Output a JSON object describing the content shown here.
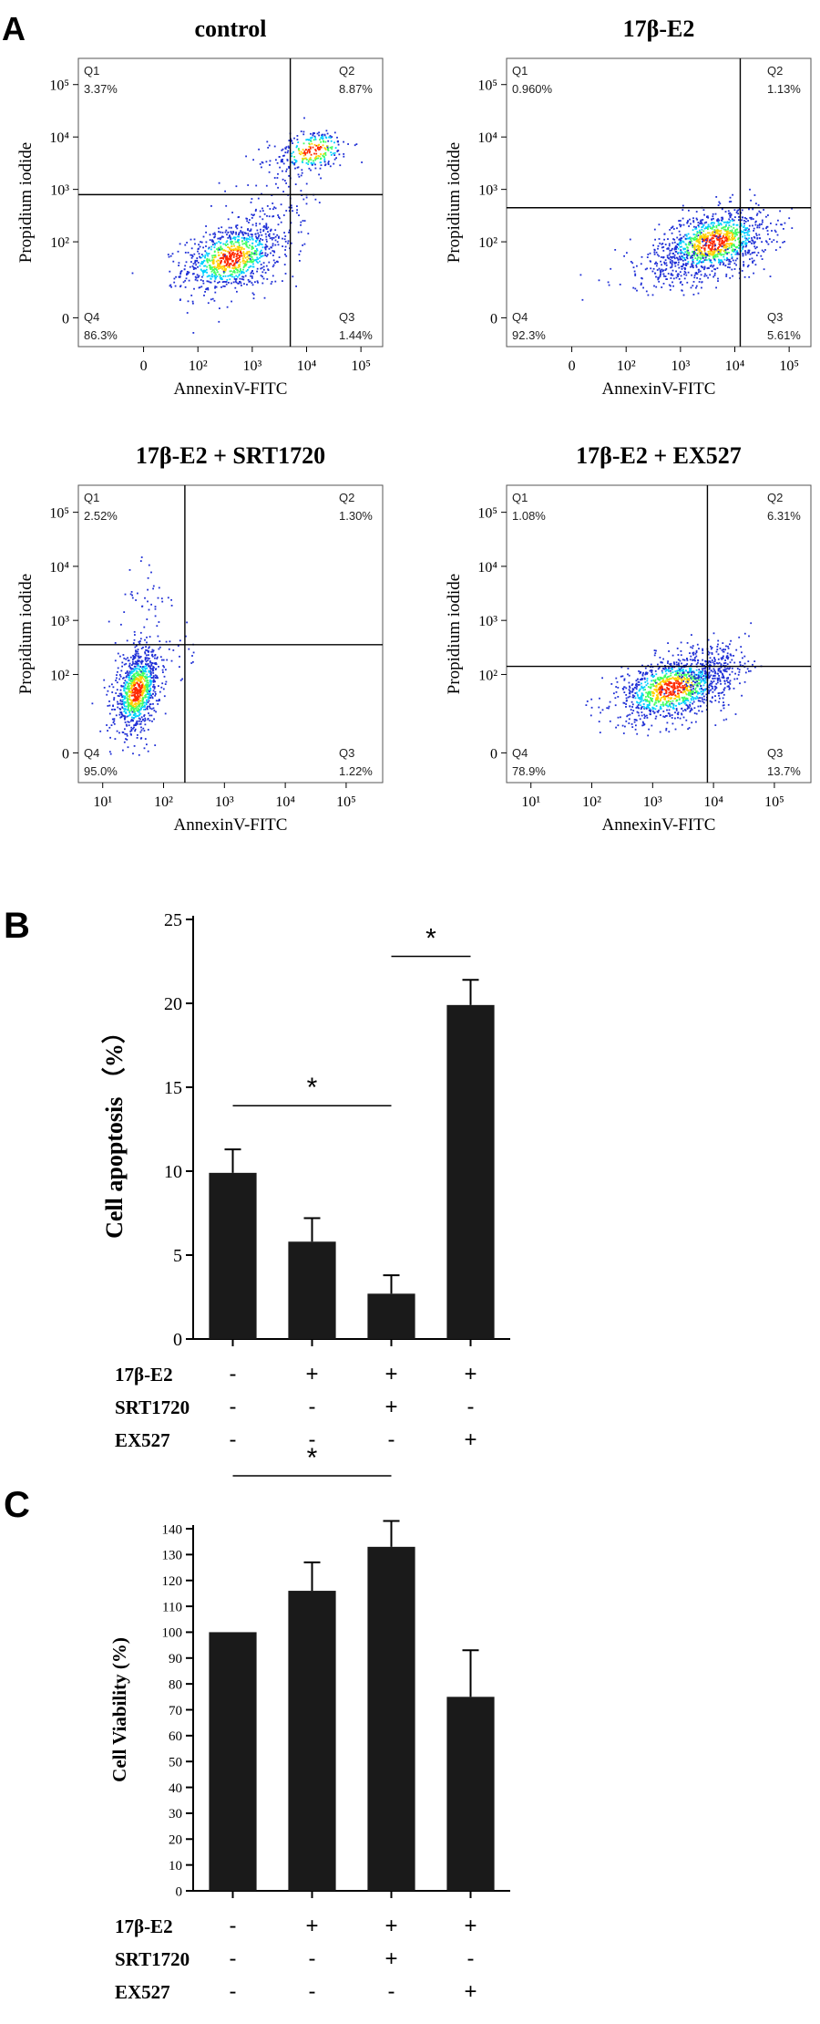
{
  "panel_labels": {
    "a": "A",
    "b": "B",
    "c": "C"
  },
  "colors": {
    "ink": "#000000",
    "bar": "#1a1a1a",
    "dot_low": "#1f2fd6",
    "dot_mid": "#00d0ff",
    "dot_high": "#ff2a00"
  },
  "chart_data": [
    {
      "type": "scatter",
      "title": "control",
      "xlabel": "AnnexinV-FITC",
      "ylabel": "Propidium iodide",
      "xticks": [
        "0",
        "10²",
        "10³",
        "10⁴",
        "10⁵"
      ],
      "yticks": [
        "0",
        "10²",
        "10³",
        "10⁴",
        "10⁵"
      ],
      "quadrants": {
        "q1": "Q1",
        "q2": "Q2",
        "q3": "Q3",
        "q4": "Q4"
      },
      "quadrant_values": {
        "q1": "3.37%",
        "q2": "8.87%",
        "q3": "1.44%",
        "q4": "86.3%"
      },
      "gate": {
        "x": 3.9,
        "y": 2.9
      },
      "clusters": [
        {
          "cx": 2.8,
          "cy": 1.7,
          "sx": 0.45,
          "sy": 0.3,
          "n": 900,
          "dense": true
        },
        {
          "cx": 4.3,
          "cy": 3.75,
          "sx": 0.35,
          "sy": 0.2,
          "n": 260,
          "dense": true
        },
        {
          "cx": 3.6,
          "cy": 2.6,
          "sx": 0.5,
          "sy": 0.6,
          "n": 160,
          "dense": false
        }
      ]
    },
    {
      "type": "scatter",
      "title": "17β-E2",
      "xlabel": "AnnexinV-FITC",
      "ylabel": "Propidium iodide",
      "xticks": [
        "0",
        "10²",
        "10³",
        "10⁴",
        "10⁵"
      ],
      "yticks": [
        "0",
        "10²",
        "10³",
        "10⁴",
        "10⁵"
      ],
      "quadrants": {
        "q1": "Q1",
        "q2": "Q2",
        "q3": "Q3",
        "q4": "Q4"
      },
      "quadrant_values": {
        "q1": "0.960%",
        "q2": "1.13%",
        "q3": "5.61%",
        "q4": "92.3%"
      },
      "gate": {
        "x": 4.3,
        "y": 2.65
      },
      "clusters": [
        {
          "cx": 3.8,
          "cy": 2.0,
          "sx": 0.5,
          "sy": 0.3,
          "n": 1100,
          "dense": true
        },
        {
          "cx": 3.2,
          "cy": 1.6,
          "sx": 0.6,
          "sy": 0.25,
          "n": 200,
          "dense": false
        }
      ]
    },
    {
      "type": "scatter",
      "title": "17β-E2  +  SRT1720",
      "xlabel": "AnnexinV-FITC",
      "ylabel": "Propidium iodide",
      "xticks": [
        "10¹",
        "10²",
        "10³",
        "10⁴",
        "10⁵"
      ],
      "yticks": [
        "0",
        "10²",
        "10³",
        "10⁴",
        "10⁵"
      ],
      "quadrants": {
        "q1": "Q1",
        "q2": "Q2",
        "q3": "Q3",
        "q4": "Q4"
      },
      "quadrant_values": {
        "q1": "2.52%",
        "q2": "1.30%",
        "q3": "1.22%",
        "q4": "95.0%"
      },
      "gate": {
        "x": 2.35,
        "y": 2.55
      },
      "clusters": [
        {
          "cx": 1.55,
          "cy": 1.7,
          "sx": 0.18,
          "sy": 0.35,
          "n": 950,
          "dense": true
        },
        {
          "cx": 1.7,
          "cy": 3.3,
          "sx": 0.25,
          "sy": 0.5,
          "n": 40,
          "dense": false
        },
        {
          "cx": 1.9,
          "cy": 2.3,
          "sx": 0.3,
          "sy": 0.3,
          "n": 60,
          "dense": false
        }
      ]
    },
    {
      "type": "scatter",
      "title": "17β-E2  +  EX527",
      "xlabel": "AnnexinV-FITC",
      "ylabel": "Propidium iodide",
      "xticks": [
        "10¹",
        "10²",
        "10³",
        "10⁴",
        "10⁵"
      ],
      "yticks": [
        "0",
        "10²",
        "10³",
        "10⁴",
        "10⁵"
      ],
      "quadrants": {
        "q1": "Q1",
        "q2": "Q2",
        "q3": "Q3",
        "q4": "Q4"
      },
      "quadrant_values": {
        "q1": "1.08%",
        "q2": "6.31%",
        "q3": "13.7%",
        "q4": "78.9%"
      },
      "gate": {
        "x": 3.9,
        "y": 2.15
      },
      "clusters": [
        {
          "cx": 3.3,
          "cy": 1.75,
          "sx": 0.45,
          "sy": 0.28,
          "n": 1100,
          "dense": true
        },
        {
          "cx": 4.0,
          "cy": 2.1,
          "sx": 0.3,
          "sy": 0.3,
          "n": 250,
          "dense": false
        }
      ]
    },
    {
      "type": "bar",
      "ylabel": "Cell apoptosis （%）",
      "ylim": [
        0,
        25
      ],
      "yticks": [
        0,
        5,
        10,
        15,
        20,
        25
      ],
      "values": [
        9.9,
        5.8,
        2.7,
        19.9
      ],
      "errors": [
        1.4,
        1.4,
        1.1,
        1.5
      ],
      "significance": [
        {
          "from": 0,
          "to": 2,
          "label": "*"
        },
        {
          "from": 2,
          "to": 3,
          "label": "*"
        }
      ],
      "treatments": [
        {
          "name": "17β-E2",
          "signs": [
            "-",
            "+",
            "+",
            "+"
          ]
        },
        {
          "name": "SRT1720",
          "signs": [
            "-",
            "-",
            "+",
            "-"
          ]
        },
        {
          "name": "EX527",
          "signs": [
            "-",
            "-",
            "-",
            "+"
          ]
        }
      ]
    },
    {
      "type": "bar",
      "ylabel": "Cell Viability (%)",
      "ylim": [
        0,
        140
      ],
      "yticks": [
        0,
        10,
        20,
        30,
        40,
        50,
        60,
        70,
        80,
        90,
        100,
        110,
        120,
        130,
        140
      ],
      "values": [
        100,
        116,
        133,
        75
      ],
      "errors": [
        0,
        11,
        10,
        18
      ],
      "significance": [
        {
          "from": 0,
          "to": 2,
          "label": "*"
        }
      ],
      "treatments": [
        {
          "name": "17β-E2",
          "signs": [
            "-",
            "+",
            "+",
            "+"
          ]
        },
        {
          "name": "SRT1720",
          "signs": [
            "-",
            "-",
            "+",
            "-"
          ]
        },
        {
          "name": "EX527",
          "signs": [
            "-",
            "-",
            "-",
            "+"
          ]
        }
      ]
    }
  ]
}
